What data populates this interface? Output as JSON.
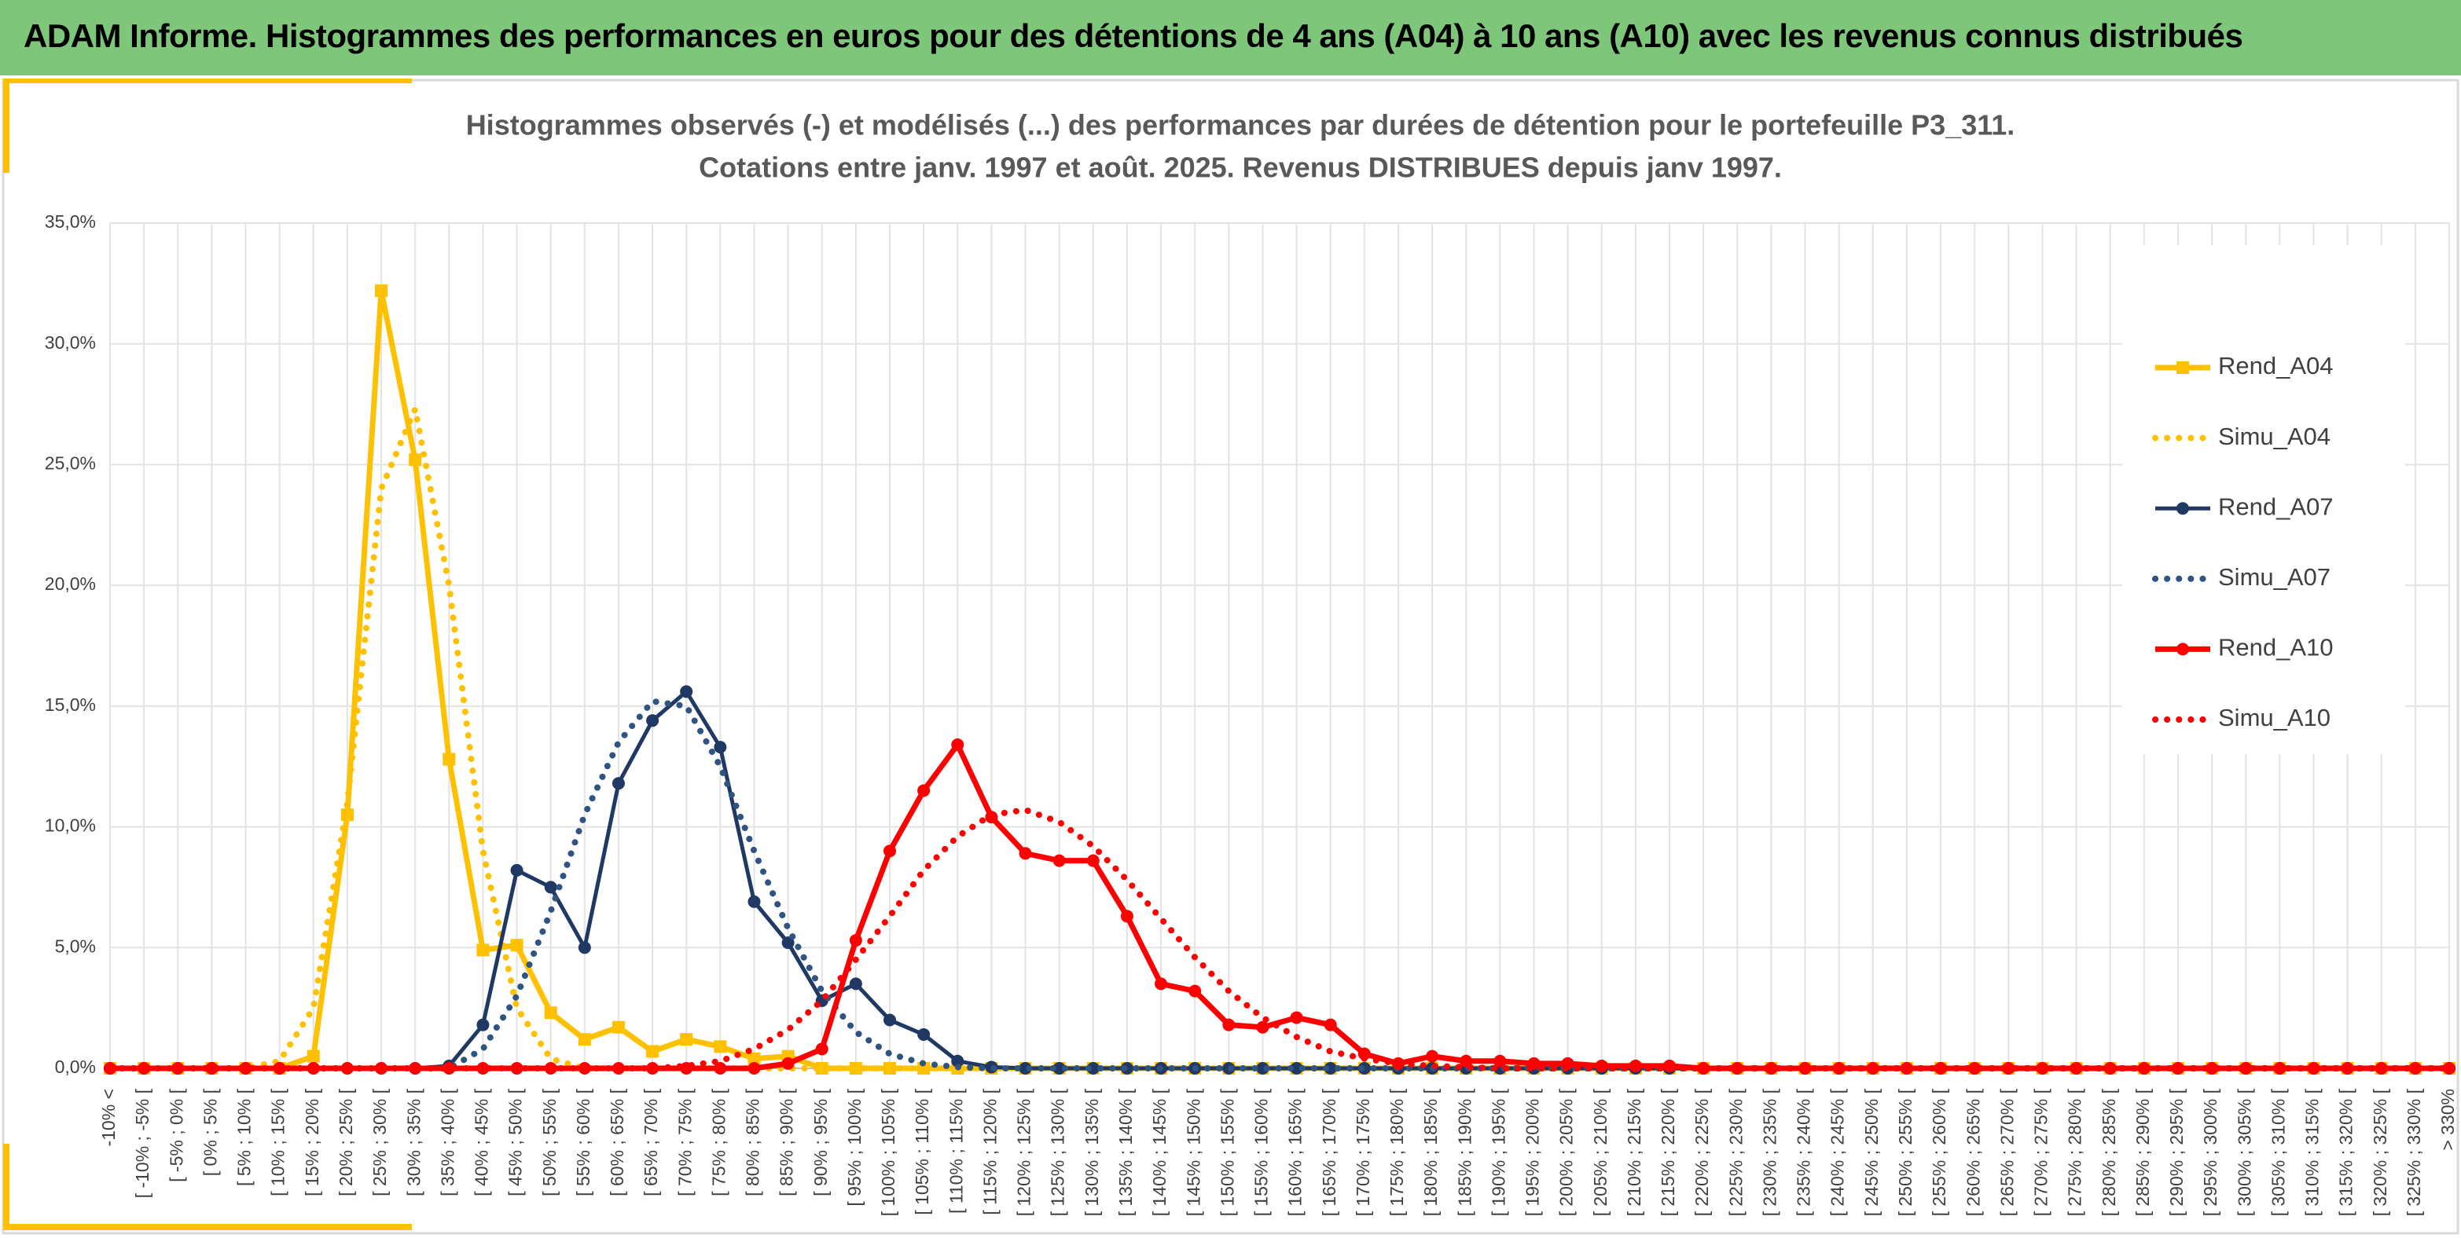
{
  "header": {
    "title": "ADAM Informe. Histogrammes des performances en euros pour des détentions de 4 ans (A04) à 10 ans (A10) avec les revenus connus distribués"
  },
  "chart_data": {
    "type": "line",
    "title": [
      "Histogrammes observés (-) et modélisés (...) des performances par durées de détention pour le portefeuille P3_311.",
      "Cotations entre janv. 1997 et août. 2025. Revenus DISTRIBUES depuis janv 1997."
    ],
    "categories": [
      "-10% <",
      "[ -10% ; -5% [",
      "[ -5% ; 0% [",
      "[ 0% ; 5% [",
      "[ 5% ; 10% [",
      "[ 10% ; 15% [",
      "[ 15% ; 20% [",
      "[ 20% ; 25% [",
      "[ 25% ; 30% [",
      "[ 30% ; 35% [",
      "[ 35% ; 40% [",
      "[ 40% ; 45% [",
      "[ 45% ; 50% [",
      "[ 50% ; 55% [",
      "[ 55% ; 60% [",
      "[ 60% ; 65% [",
      "[ 65% ; 70% [",
      "[ 70% ; 75% [",
      "[ 75% ; 80% [",
      "[ 80% ; 85% [",
      "[ 85% ; 90% [",
      "[ 90% ; 95% [",
      "[ 95% ; 100% [",
      "[ 100% ; 105% [",
      "[ 105% ; 110% [",
      "[ 110% ; 115% [",
      "[ 115% ; 120% [",
      "[ 120% ; 125% [",
      "[ 125% ; 130% [",
      "[ 130% ; 135% [",
      "[ 135% ; 140% [",
      "[ 140% ; 145% [",
      "[ 145% ; 150% [",
      "[ 150% ; 155% [",
      "[ 155% ; 160% [",
      "[ 160% ; 165% [",
      "[ 165% ; 170% [",
      "[ 170% ; 175% [",
      "[ 175% ; 180% [",
      "[ 180% ; 185% [",
      "[ 185% ; 190% [",
      "[ 190% ; 195% [",
      "[ 195% ; 200% [",
      "[ 200% ; 205% [",
      "[ 205% ; 210% [",
      "[ 210% ; 215% [",
      "[ 215% ; 220% [",
      "[ 220% ; 225% [",
      "[ 225% ; 230% [",
      "[ 230% ; 235% [",
      "[ 235% ; 240% [",
      "[ 240% ; 245% [",
      "[ 245% ; 250% [",
      "[ 250% ; 255% [",
      "[ 255% ; 260% [",
      "[ 260% ; 265% [",
      "[ 265% ; 270% [",
      "[ 270% ; 275% [",
      "[ 275% ; 280% [",
      "[ 280% ; 285% [",
      "[ 285% ; 290% [",
      "[ 290% ; 295% [",
      "[ 295% ; 300% [",
      "[ 300% ; 305% [",
      "[ 305% ; 310% [",
      "[ 310% ; 315% [",
      "[ 315% ; 320% [",
      "[ 320% ; 325% [",
      "[ 325% ; 330% [",
      "> 330%"
    ],
    "series": [
      {
        "name": "Rend_A04",
        "color": "#ffc000",
        "style": "solid",
        "marker": "square",
        "values": [
          0,
          0,
          0,
          0,
          0,
          0,
          0.5,
          10.5,
          32.2,
          25.2,
          12.8,
          4.9,
          5.1,
          2.3,
          1.2,
          1.7,
          0.7,
          1.2,
          0.9,
          0.4,
          0.5,
          0,
          0,
          0,
          0,
          0,
          0,
          0,
          0,
          0,
          0,
          0,
          0,
          0,
          0,
          0,
          0,
          0,
          0,
          0,
          0,
          0,
          0,
          0,
          0,
          0,
          0,
          0,
          0,
          0,
          0,
          0,
          0,
          0,
          0,
          0,
          0,
          0,
          0,
          0,
          0,
          0,
          0,
          0,
          0,
          0,
          0,
          0,
          0,
          0
        ]
      },
      {
        "name": "Simu_A04",
        "color": "#ffc000",
        "style": "dotted",
        "marker": "none",
        "values": [
          0,
          0,
          0,
          0,
          0,
          0.3,
          2.5,
          11,
          24,
          27.3,
          20,
          9,
          2.5,
          0.4,
          0,
          0,
          0,
          0,
          0,
          0,
          0,
          0,
          0,
          0,
          0,
          0,
          0,
          0,
          0,
          0,
          0,
          0,
          0,
          0,
          0,
          0,
          0,
          0,
          0,
          0,
          0,
          0,
          0,
          0,
          0,
          0,
          0,
          0,
          0,
          0,
          0,
          0,
          0,
          0,
          0,
          0,
          0,
          0,
          0,
          0,
          0,
          0,
          0,
          0,
          0,
          0,
          0,
          0,
          0,
          0
        ]
      },
      {
        "name": "Rend_A07",
        "color": "#1f3864",
        "style": "solid",
        "marker": "circle",
        "values": [
          0,
          0,
          0,
          0,
          0,
          0,
          0,
          0,
          0,
          0,
          0.1,
          1.8,
          8.2,
          7.5,
          5.0,
          11.8,
          14.4,
          15.6,
          13.3,
          6.9,
          5.2,
          2.8,
          3.5,
          2.0,
          1.4,
          0.3,
          0.05,
          0,
          0,
          0,
          0,
          0,
          0,
          0,
          0,
          0,
          0,
          0,
          0,
          0,
          0,
          0,
          0,
          0,
          0,
          0,
          0,
          0,
          0,
          0,
          0,
          0,
          0,
          0,
          0,
          0,
          0,
          0,
          0,
          0,
          0,
          0,
          0,
          0,
          0,
          0,
          0,
          0,
          0,
          0
        ]
      },
      {
        "name": "Simu_A07",
        "color": "#2f5481",
        "style": "dotted",
        "marker": "none",
        "values": [
          0,
          0,
          0,
          0,
          0,
          0,
          0,
          0,
          0,
          0,
          0,
          0.8,
          3,
          6.5,
          10.5,
          13.5,
          15.2,
          15,
          12.5,
          9,
          5.8,
          3.2,
          1.5,
          0.6,
          0.2,
          0.05,
          0,
          0,
          0,
          0,
          0,
          0,
          0,
          0,
          0,
          0,
          0,
          0,
          0,
          0,
          0,
          0,
          0,
          0,
          0,
          0,
          0,
          0,
          0,
          0,
          0,
          0,
          0,
          0,
          0,
          0,
          0,
          0,
          0,
          0,
          0,
          0,
          0,
          0,
          0,
          0,
          0,
          0,
          0,
          0
        ]
      },
      {
        "name": "Rend_A10",
        "color": "#ff0000",
        "style": "solid",
        "marker": "circle",
        "values": [
          0,
          0,
          0,
          0,
          0,
          0,
          0,
          0,
          0,
          0,
          0,
          0,
          0,
          0,
          0,
          0,
          0,
          0,
          0,
          0,
          0.2,
          0.8,
          5.3,
          9.0,
          11.5,
          13.4,
          10.4,
          8.9,
          8.6,
          8.6,
          6.3,
          3.5,
          3.2,
          1.8,
          1.7,
          2.1,
          1.8,
          0.6,
          0.2,
          0.5,
          0.3,
          0.3,
          0.2,
          0.2,
          0.1,
          0.1,
          0.1,
          0,
          0,
          0,
          0,
          0,
          0,
          0,
          0,
          0,
          0,
          0,
          0,
          0,
          0,
          0,
          0,
          0,
          0,
          0,
          0,
          0,
          0,
          0
        ]
      },
      {
        "name": "Simu_A10",
        "color": "#ff0000",
        "style": "dotted",
        "marker": "none",
        "values": [
          0,
          0,
          0,
          0,
          0,
          0,
          0,
          0,
          0,
          0,
          0,
          0,
          0,
          0,
          0,
          0,
          0,
          0.1,
          0.3,
          0.8,
          1.6,
          2.8,
          4.5,
          6.3,
          8.2,
          9.6,
          10.5,
          10.7,
          10.2,
          9.2,
          7.8,
          6.2,
          4.6,
          3.2,
          2.1,
          1.3,
          0.7,
          0.4,
          0.2,
          0.1,
          0.05,
          0,
          0,
          0,
          0,
          0,
          0,
          0,
          0,
          0,
          0,
          0,
          0,
          0,
          0,
          0,
          0,
          0,
          0,
          0,
          0,
          0,
          0,
          0,
          0,
          0,
          0,
          0,
          0,
          0
        ]
      }
    ],
    "ylim": [
      0,
      35
    ],
    "yticks": [
      {
        "value": 0,
        "label": "0,0%"
      },
      {
        "value": 5,
        "label": "5,0%"
      },
      {
        "value": 10,
        "label": "10,0%"
      },
      {
        "value": 15,
        "label": "15,0%"
      },
      {
        "value": 20,
        "label": "20,0%"
      },
      {
        "value": 25,
        "label": "25,0%"
      },
      {
        "value": 30,
        "label": "30,0%"
      },
      {
        "value": 35,
        "label": "35,0%"
      }
    ],
    "grid": true,
    "legend": "right"
  }
}
